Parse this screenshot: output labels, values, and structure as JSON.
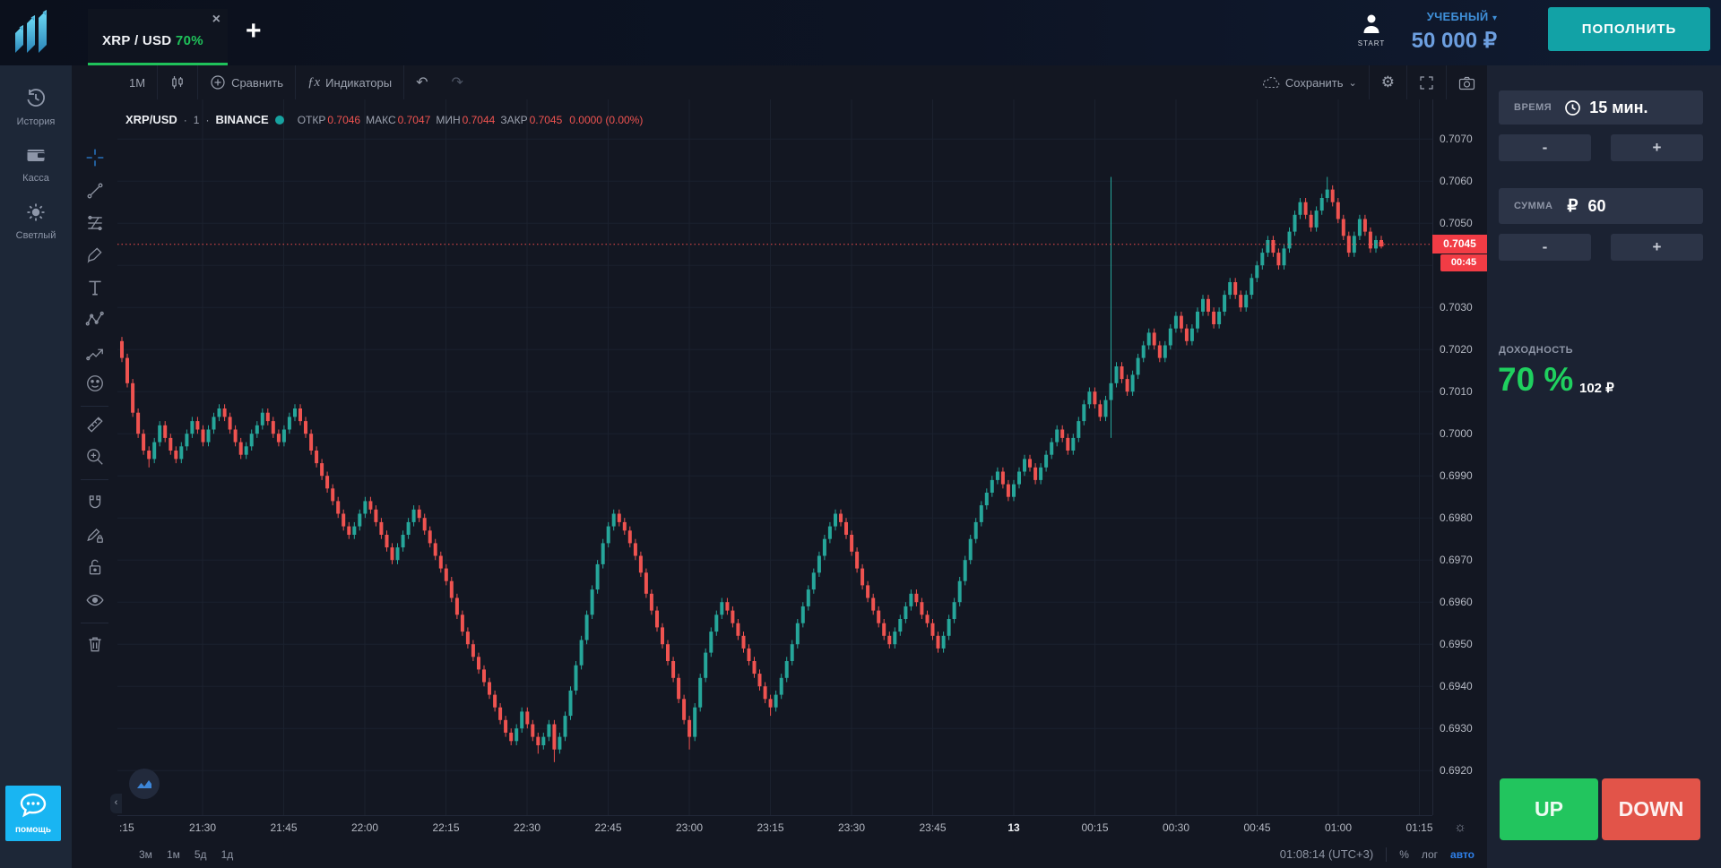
{
  "topbar": {
    "tab": {
      "pair": "XRP / USD",
      "payout": "70%",
      "close_glyph": "×"
    },
    "add_tab_glyph": "+",
    "account": {
      "start_label": "START",
      "type_label": "УЧЕБНЫЙ",
      "caret_glyph": "▾",
      "balance": "50 000 ₽"
    },
    "deposit_label": "ПОПОЛНИТЬ"
  },
  "sidebar": {
    "items": [
      {
        "label": "История"
      },
      {
        "label": "Касса"
      },
      {
        "label": "Светлый"
      }
    ],
    "help_label": "помощь"
  },
  "chart_toolbar": {
    "interval": "1M",
    "compare_label": "Сравнить",
    "indicators_fx": "ƒx",
    "indicators_label": "Индикаторы",
    "undo_glyph": "↶",
    "redo_glyph": "↷",
    "save_label": "Сохранить",
    "save_caret": "⌄",
    "gear_glyph": "⚙"
  },
  "legend": {
    "symbol": "XRP/USD",
    "dot1": "·",
    "interval": "1",
    "dot2": "·",
    "exchange": "BINANCE",
    "open_label": "ОТКР",
    "open": "0.7046",
    "high_label": "МАКС",
    "high": "0.7047",
    "low_label": "МИН",
    "low": "0.7044",
    "close_label": "ЗАКР",
    "close": "0.7045",
    "change": "0.0000 (0.00%)"
  },
  "panel": {
    "time_label": "ВРЕМЯ",
    "time_value": "15 мин.",
    "minus_glyph": "-",
    "plus_glyph": "+",
    "amount_label": "СУММА",
    "currency_glyph": "₽",
    "amount_value": "60",
    "payout_label": "ДОХОДНОСТЬ",
    "payout_pct": "70 %",
    "payout_amount": "102 ₽",
    "up_label": "UP",
    "down_label": "DOWN",
    "up_color": "#22c55e",
    "down_color": "#e25449"
  },
  "footer": {
    "ranges": [
      "3м",
      "1м",
      "5д",
      "1д"
    ],
    "clock": "01:08:14 (UTC+3)",
    "percent_label": "%",
    "log_label": "лог",
    "auto_label": "авто",
    "corner_icon_glyph": "☼"
  },
  "price_marker": {
    "label": "0.7045",
    "countdown": "00:45",
    "color": "#f23c45"
  },
  "chart_data": {
    "type": "candlestick",
    "symbol": "XRP/USD",
    "exchange": "BINANCE",
    "interval_minutes": 1,
    "start_time": "21:15",
    "end_time": "01:08",
    "price_base": 0.69,
    "price_unit": 0.0001,
    "ylim": [
      0.69094,
      0.70794
    ],
    "last_price": 0.7045,
    "up_color": "#26a69a",
    "down_color": "#ef5350",
    "grid_color": "#1b212e",
    "price_ticks": [
      "0.7070",
      "0.7060",
      "0.7050",
      "0.7030",
      "0.7020",
      "0.7010",
      "0.7000",
      "0.6990",
      "0.6980",
      "0.6970",
      "0.6960",
      "0.6950",
      "0.6940",
      "0.6930",
      "0.6920"
    ],
    "grid_prices": [
      0.707,
      0.706,
      0.705,
      0.704,
      0.703,
      0.702,
      0.701,
      0.7,
      0.699,
      0.698,
      0.697,
      0.696,
      0.695,
      0.694,
      0.693,
      0.692
    ],
    "time_ticks": [
      ":15",
      "21:30",
      "21:45",
      "22:00",
      "22:15",
      "22:30",
      "22:45",
      "23:00",
      "23:15",
      "23:30",
      "23:45",
      "13",
      "00:15",
      "00:30",
      "00:45",
      "01:00",
      "01:15"
    ],
    "candles": [
      [
        122,
        123,
        117,
        118
      ],
      [
        118,
        119,
        111,
        112
      ],
      [
        112,
        113,
        104,
        105
      ],
      [
        105,
        106,
        99,
        100
      ],
      [
        100,
        101,
        95,
        96
      ],
      [
        96,
        97,
        92,
        94
      ],
      [
        94,
        99,
        93,
        98
      ],
      [
        98,
        103,
        97,
        102
      ],
      [
        102,
        103,
        98,
        99
      ],
      [
        99,
        100,
        95,
        96
      ],
      [
        96,
        97,
        93,
        94
      ],
      [
        94,
        98,
        93,
        97
      ],
      [
        97,
        101,
        96,
        100
      ],
      [
        100,
        104,
        99,
        103
      ],
      [
        103,
        104,
        100,
        101
      ],
      [
        101,
        102,
        97,
        98
      ],
      [
        98,
        102,
        97,
        101
      ],
      [
        101,
        105,
        100,
        104
      ],
      [
        104,
        107,
        103,
        106
      ],
      [
        106,
        107,
        103,
        104
      ],
      [
        104,
        105,
        100,
        101
      ],
      [
        101,
        102,
        97,
        98
      ],
      [
        98,
        99,
        94,
        95
      ],
      [
        95,
        98,
        94,
        97
      ],
      [
        97,
        101,
        96,
        100
      ],
      [
        100,
        103,
        99,
        102
      ],
      [
        102,
        106,
        101,
        105
      ],
      [
        105,
        106,
        102,
        103
      ],
      [
        103,
        104,
        99,
        100
      ],
      [
        100,
        101,
        97,
        98
      ],
      [
        98,
        102,
        97,
        101
      ],
      [
        101,
        105,
        100,
        104
      ],
      [
        104,
        107,
        103,
        106
      ],
      [
        106,
        107,
        102,
        103
      ],
      [
        103,
        104,
        99,
        100
      ],
      [
        100,
        101,
        95,
        96
      ],
      [
        96,
        97,
        92,
        93
      ],
      [
        93,
        94,
        89,
        90
      ],
      [
        90,
        91,
        86,
        87
      ],
      [
        87,
        88,
        83,
        84
      ],
      [
        84,
        85,
        80,
        81
      ],
      [
        81,
        82,
        77,
        78
      ],
      [
        78,
        79,
        75,
        76
      ],
      [
        76,
        79,
        75,
        78
      ],
      [
        78,
        82,
        77,
        81
      ],
      [
        81,
        85,
        80,
        84
      ],
      [
        84,
        85,
        81,
        82
      ],
      [
        82,
        83,
        78,
        79
      ],
      [
        79,
        80,
        75,
        76
      ],
      [
        76,
        77,
        72,
        73
      ],
      [
        73,
        74,
        69,
        70
      ],
      [
        70,
        74,
        69,
        73
      ],
      [
        73,
        77,
        72,
        76
      ],
      [
        76,
        80,
        75,
        79
      ],
      [
        79,
        83,
        78,
        82
      ],
      [
        82,
        83,
        79,
        80
      ],
      [
        80,
        81,
        76,
        77
      ],
      [
        77,
        78,
        73,
        74
      ],
      [
        74,
        75,
        70,
        71
      ],
      [
        71,
        72,
        67,
        68
      ],
      [
        68,
        69,
        64,
        65
      ],
      [
        65,
        66,
        60,
        61
      ],
      [
        61,
        62,
        56,
        57
      ],
      [
        57,
        58,
        52,
        53
      ],
      [
        53,
        54,
        49,
        50
      ],
      [
        50,
        51,
        46,
        47
      ],
      [
        47,
        48,
        43,
        44
      ],
      [
        44,
        45,
        40,
        41
      ],
      [
        41,
        42,
        37,
        38
      ],
      [
        38,
        39,
        34,
        35
      ],
      [
        35,
        36,
        31,
        32
      ],
      [
        32,
        33,
        28,
        29
      ],
      [
        29,
        30,
        26,
        27
      ],
      [
        27,
        31,
        26,
        30
      ],
      [
        30,
        35,
        29,
        34
      ],
      [
        34,
        35,
        30,
        31
      ],
      [
        31,
        32,
        27,
        28
      ],
      [
        28,
        29,
        24,
        26
      ],
      [
        26,
        29,
        25,
        28
      ],
      [
        28,
        32,
        27,
        31
      ],
      [
        31,
        32,
        22,
        25
      ],
      [
        25,
        29,
        24,
        28
      ],
      [
        28,
        34,
        27,
        33
      ],
      [
        33,
        40,
        32,
        39
      ],
      [
        39,
        46,
        38,
        45
      ],
      [
        45,
        52,
        44,
        51
      ],
      [
        51,
        58,
        50,
        57
      ],
      [
        57,
        64,
        56,
        63
      ],
      [
        63,
        70,
        62,
        69
      ],
      [
        69,
        75,
        68,
        74
      ],
      [
        74,
        79,
        73,
        78
      ],
      [
        78,
        82,
        77,
        81
      ],
      [
        81,
        82,
        78,
        79
      ],
      [
        79,
        80,
        76,
        77
      ],
      [
        77,
        78,
        73,
        74
      ],
      [
        74,
        75,
        70,
        71
      ],
      [
        71,
        72,
        66,
        67
      ],
      [
        67,
        68,
        61,
        62
      ],
      [
        62,
        63,
        57,
        58
      ],
      [
        58,
        59,
        53,
        54
      ],
      [
        54,
        55,
        49,
        50
      ],
      [
        50,
        51,
        45,
        46
      ],
      [
        46,
        47,
        41,
        42
      ],
      [
        42,
        43,
        36,
        37
      ],
      [
        37,
        38,
        31,
        32
      ],
      [
        32,
        33,
        25,
        28
      ],
      [
        28,
        36,
        27,
        35
      ],
      [
        35,
        43,
        34,
        42
      ],
      [
        42,
        49,
        41,
        48
      ],
      [
        48,
        54,
        47,
        53
      ],
      [
        53,
        58,
        52,
        57
      ],
      [
        57,
        61,
        56,
        60
      ],
      [
        60,
        61,
        57,
        58
      ],
      [
        58,
        59,
        54,
        55
      ],
      [
        55,
        56,
        51,
        52
      ],
      [
        52,
        53,
        48,
        49
      ],
      [
        49,
        50,
        45,
        46
      ],
      [
        46,
        47,
        42,
        43
      ],
      [
        43,
        44,
        39,
        40
      ],
      [
        40,
        41,
        36,
        37
      ],
      [
        37,
        38,
        33,
        35
      ],
      [
        35,
        39,
        34,
        38
      ],
      [
        38,
        43,
        37,
        42
      ],
      [
        42,
        47,
        41,
        46
      ],
      [
        46,
        51,
        45,
        50
      ],
      [
        50,
        56,
        49,
        55
      ],
      [
        55,
        60,
        54,
        59
      ],
      [
        59,
        64,
        58,
        63
      ],
      [
        63,
        68,
        62,
        67
      ],
      [
        67,
        72,
        66,
        71
      ],
      [
        71,
        76,
        70,
        75
      ],
      [
        75,
        79,
        74,
        78
      ],
      [
        78,
        82,
        77,
        81
      ],
      [
        81,
        82,
        78,
        79
      ],
      [
        79,
        80,
        75,
        76
      ],
      [
        76,
        77,
        71,
        72
      ],
      [
        72,
        73,
        67,
        68
      ],
      [
        68,
        69,
        63,
        64
      ],
      [
        64,
        65,
        60,
        61
      ],
      [
        61,
        62,
        57,
        58
      ],
      [
        58,
        59,
        54,
        55
      ],
      [
        55,
        56,
        51,
        52
      ],
      [
        52,
        53,
        49,
        50
      ],
      [
        50,
        54,
        49,
        53
      ],
      [
        53,
        57,
        52,
        56
      ],
      [
        56,
        60,
        55,
        59
      ],
      [
        59,
        63,
        58,
        62
      ],
      [
        62,
        63,
        59,
        60
      ],
      [
        60,
        61,
        56,
        57
      ],
      [
        57,
        58,
        54,
        55
      ],
      [
        55,
        56,
        51,
        52
      ],
      [
        52,
        53,
        48,
        49
      ],
      [
        49,
        53,
        48,
        52
      ],
      [
        52,
        57,
        51,
        56
      ],
      [
        56,
        61,
        55,
        60
      ],
      [
        60,
        66,
        59,
        65
      ],
      [
        65,
        71,
        64,
        70
      ],
      [
        70,
        76,
        69,
        75
      ],
      [
        75,
        80,
        74,
        79
      ],
      [
        79,
        84,
        78,
        83
      ],
      [
        83,
        87,
        82,
        86
      ],
      [
        86,
        90,
        85,
        89
      ],
      [
        89,
        92,
        88,
        91
      ],
      [
        91,
        92,
        87,
        88
      ],
      [
        88,
        89,
        84,
        85
      ],
      [
        85,
        89,
        84,
        88
      ],
      [
        88,
        92,
        87,
        91
      ],
      [
        91,
        95,
        90,
        94
      ],
      [
        94,
        95,
        91,
        92
      ],
      [
        92,
        93,
        88,
        89
      ],
      [
        89,
        93,
        88,
        92
      ],
      [
        92,
        96,
        91,
        95
      ],
      [
        95,
        99,
        94,
        98
      ],
      [
        98,
        102,
        97,
        101
      ],
      [
        101,
        102,
        98,
        99
      ],
      [
        99,
        100,
        95,
        96
      ],
      [
        96,
        100,
        95,
        99
      ],
      [
        99,
        104,
        98,
        103
      ],
      [
        103,
        108,
        102,
        107
      ],
      [
        107,
        111,
        106,
        110
      ],
      [
        110,
        111,
        106,
        107
      ],
      [
        107,
        108,
        103,
        104
      ],
      [
        104,
        109,
        103,
        108
      ],
      [
        108,
        161,
        99,
        112
      ],
      [
        112,
        117,
        111,
        116
      ],
      [
        116,
        117,
        112,
        113
      ],
      [
        113,
        114,
        109,
        110
      ],
      [
        110,
        115,
        109,
        114
      ],
      [
        114,
        119,
        113,
        118
      ],
      [
        118,
        122,
        117,
        121
      ],
      [
        121,
        125,
        120,
        124
      ],
      [
        124,
        125,
        120,
        121
      ],
      [
        121,
        122,
        117,
        118
      ],
      [
        118,
        122,
        117,
        121
      ],
      [
        121,
        126,
        120,
        125
      ],
      [
        125,
        129,
        124,
        128
      ],
      [
        128,
        129,
        124,
        125
      ],
      [
        125,
        126,
        121,
        122
      ],
      [
        122,
        126,
        121,
        125
      ],
      [
        125,
        130,
        124,
        129
      ],
      [
        129,
        133,
        128,
        132
      ],
      [
        132,
        133,
        128,
        129
      ],
      [
        129,
        130,
        125,
        126
      ],
      [
        126,
        130,
        125,
        129
      ],
      [
        129,
        134,
        128,
        133
      ],
      [
        133,
        137,
        132,
        136
      ],
      [
        136,
        137,
        132,
        133
      ],
      [
        133,
        134,
        129,
        130
      ],
      [
        130,
        134,
        129,
        133
      ],
      [
        133,
        138,
        132,
        137
      ],
      [
        137,
        141,
        136,
        140
      ],
      [
        140,
        144,
        139,
        143
      ],
      [
        143,
        147,
        142,
        146
      ],
      [
        146,
        147,
        142,
        143
      ],
      [
        143,
        144,
        139,
        140
      ],
      [
        140,
        145,
        139,
        144
      ],
      [
        144,
        149,
        143,
        148
      ],
      [
        148,
        153,
        147,
        152
      ],
      [
        152,
        156,
        151,
        155
      ],
      [
        155,
        156,
        151,
        152
      ],
      [
        152,
        153,
        148,
        149
      ],
      [
        149,
        154,
        148,
        153
      ],
      [
        153,
        157,
        152,
        156
      ],
      [
        156,
        161,
        155,
        158
      ],
      [
        158,
        159,
        154,
        155
      ],
      [
        155,
        156,
        150,
        151
      ],
      [
        151,
        152,
        146,
        147
      ],
      [
        147,
        148,
        142,
        143
      ],
      [
        143,
        148,
        142,
        147
      ],
      [
        147,
        152,
        146,
        151
      ],
      [
        151,
        152,
        147,
        148
      ],
      [
        148,
        149,
        143,
        144
      ],
      [
        144,
        147,
        143,
        146
      ],
      [
        146,
        147,
        144,
        145
      ]
    ]
  }
}
